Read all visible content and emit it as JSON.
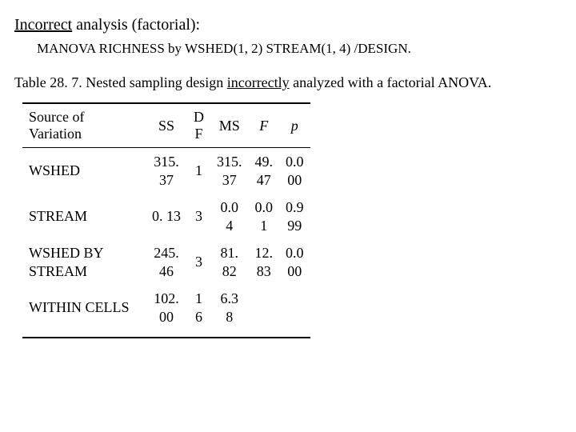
{
  "heading": {
    "underlined": "Incorrect",
    "rest": " analysis (factorial):"
  },
  "syntax": "MANOVA  RICHNESS by WSHED(1, 2) STREAM(1, 4)  /DESIGN.",
  "caption": {
    "pre": "Table 28. 7.  Nested sampling design ",
    "under": "incorrectly",
    "post": " analyzed with a factorial ANOVA."
  },
  "table": {
    "headers": {
      "source_l1": "Source of",
      "source_l2": "Variation",
      "ss": "SS",
      "df_l1": "D",
      "df_l2": "F",
      "ms": "MS",
      "f": "F",
      "p": "p"
    },
    "rows": [
      {
        "source": "WSHED",
        "ss_l1": "315.",
        "ss_l2": "37",
        "df": "1",
        "ms_l1": "315.",
        "ms_l2": "37",
        "f_l1": "49.",
        "f_l2": "47",
        "p_l1": "0.0",
        "p_l2": "00"
      },
      {
        "source": "STREAM",
        "ss_l1": "0. 13",
        "ss_l2": "",
        "df": "3",
        "ms_l1": "0.0",
        "ms_l2": "4",
        "f_l1": "0.0",
        "f_l2": "1",
        "p_l1": "0.9",
        "p_l2": "99"
      },
      {
        "source_l1": "WSHED BY",
        "source_l2": "STREAM",
        "ss_l1": "245.",
        "ss_l2": "46",
        "df": "3",
        "ms_l1": "81.",
        "ms_l2": "82",
        "f_l1": "12.",
        "f_l2": "83",
        "p_l1": "0.0",
        "p_l2": "00"
      },
      {
        "source": "WITHIN CELLS",
        "ss_l1": "102.",
        "ss_l2": "00",
        "df_l1": "1",
        "df_l2": "6",
        "ms_l1": "6.3",
        "ms_l2": "8",
        "f_l1": "",
        "f_l2": "",
        "p_l1": "",
        "p_l2": ""
      }
    ],
    "col_widths": {
      "ss": 48,
      "df": 28,
      "ms": 48,
      "f": 40,
      "p": 40
    },
    "border_color": "#000000",
    "background_color": "#ffffff"
  }
}
